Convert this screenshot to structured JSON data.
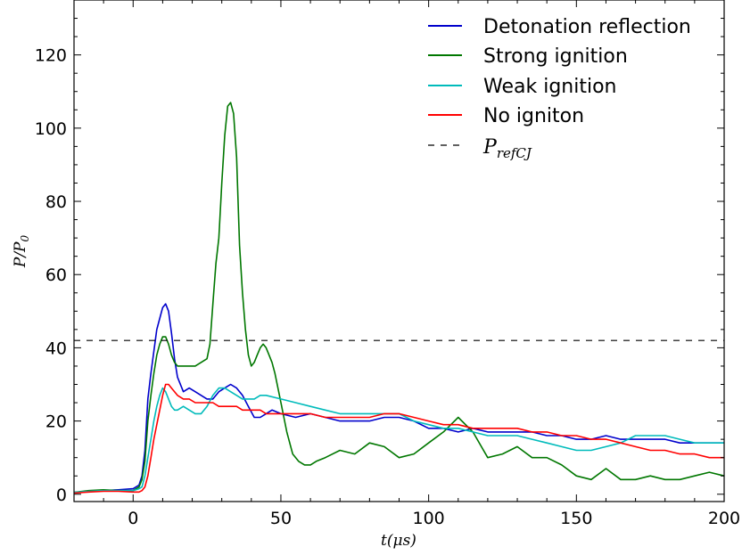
{
  "chart_data": {
    "type": "line",
    "xlabel": "t(μs)",
    "ylabel": "P/P_0",
    "xlim": [
      -20,
      200
    ],
    "ylim": [
      -2,
      135
    ],
    "xticks": [
      0,
      50,
      100,
      150,
      200
    ],
    "xtick_labels": [
      "0",
      "50",
      "100",
      "150",
      "200"
    ],
    "yticks": [
      0,
      20,
      40,
      60,
      80,
      100,
      120
    ],
    "ytick_labels": [
      "0",
      "20",
      "40",
      "60",
      "80",
      "100",
      "120"
    ],
    "grid": false,
    "legend_position": "top-right",
    "series": [
      {
        "name": "Detonation reflection",
        "color": "#0000cc",
        "x": [
          -20,
          -15,
          -10,
          -5,
          0,
          2,
          3,
          4,
          5,
          6,
          7,
          8,
          9,
          10,
          11,
          12,
          13,
          14,
          15,
          17,
          19,
          21,
          23,
          25,
          27,
          29,
          31,
          33,
          35,
          37,
          39,
          41,
          43,
          45,
          47,
          50,
          55,
          60,
          65,
          70,
          75,
          80,
          85,
          90,
          95,
          100,
          105,
          110,
          115,
          120,
          125,
          130,
          135,
          140,
          145,
          150,
          155,
          160,
          165,
          170,
          175,
          180,
          185,
          190,
          195,
          200
        ],
        "y": [
          0.5,
          0.8,
          1,
          1.2,
          1.5,
          2.5,
          5,
          12,
          26,
          33,
          39,
          45,
          48,
          51,
          52,
          50,
          44,
          37,
          32,
          28,
          29,
          28,
          27,
          26,
          26,
          28,
          29,
          30,
          29,
          27,
          24,
          21,
          21,
          22,
          23,
          22,
          21,
          22,
          21,
          20,
          20,
          20,
          21,
          21,
          20,
          18,
          18,
          17,
          18,
          17,
          17,
          17,
          17,
          16,
          16,
          15,
          15,
          16,
          15,
          15,
          15,
          15,
          14,
          14,
          14,
          14
        ]
      },
      {
        "name": "Strong ignition",
        "color": "#007700",
        "x": [
          -20,
          -15,
          -10,
          -5,
          0,
          2,
          3,
          4,
          5,
          6,
          7,
          8,
          9,
          10,
          11,
          12,
          13,
          14,
          15,
          17,
          19,
          21,
          23,
          25,
          26,
          27,
          28,
          29,
          30,
          31,
          32,
          33,
          34,
          35,
          36,
          37,
          38,
          39,
          40,
          41,
          42,
          43,
          44,
          45,
          46,
          47,
          48,
          50,
          52,
          54,
          56,
          58,
          60,
          62,
          65,
          70,
          75,
          80,
          85,
          90,
          95,
          100,
          105,
          110,
          115,
          120,
          125,
          130,
          135,
          140,
          145,
          150,
          155,
          160,
          165,
          170,
          175,
          180,
          185,
          190,
          195,
          200
        ],
        "y": [
          0.5,
          1,
          1.2,
          1,
          1,
          2,
          4,
          9,
          20,
          27,
          33,
          38,
          41,
          43,
          43,
          41,
          38,
          36,
          35,
          35,
          35,
          35,
          36,
          37,
          41,
          52,
          63,
          70,
          85,
          98,
          106,
          107,
          104,
          92,
          68,
          55,
          45,
          38,
          35,
          36,
          38,
          40,
          41,
          40,
          38,
          36,
          33,
          25,
          17,
          11,
          9,
          8,
          8,
          9,
          10,
          12,
          11,
          14,
          13,
          10,
          11,
          14,
          17,
          21,
          17,
          10,
          11,
          13,
          10,
          10,
          8,
          5,
          4,
          7,
          4,
          4,
          5,
          4,
          4,
          5,
          6,
          5
        ]
      },
      {
        "name": "Weak ignition",
        "color": "#00bbbb",
        "x": [
          -20,
          -15,
          -10,
          -5,
          0,
          2,
          3,
          4,
          5,
          6,
          7,
          8,
          9,
          10,
          11,
          12,
          13,
          14,
          15,
          17,
          19,
          21,
          23,
          25,
          27,
          29,
          31,
          33,
          35,
          37,
          39,
          41,
          43,
          45,
          50,
          55,
          60,
          65,
          70,
          75,
          80,
          85,
          90,
          95,
          100,
          105,
          110,
          115,
          120,
          125,
          130,
          135,
          140,
          145,
          150,
          155,
          160,
          165,
          170,
          175,
          180,
          185,
          190,
          195,
          200
        ],
        "y": [
          0.5,
          0.8,
          1,
          1,
          1,
          1.5,
          2,
          5,
          10,
          15,
          20,
          24,
          27,
          29,
          28,
          26,
          24,
          23,
          23,
          24,
          23,
          22,
          22,
          24,
          27,
          29,
          29,
          28,
          27,
          26,
          26,
          26,
          27,
          27,
          26,
          25,
          24,
          23,
          22,
          22,
          22,
          22,
          22,
          20,
          19,
          18,
          18,
          17,
          16,
          16,
          16,
          15,
          14,
          13,
          12,
          12,
          13,
          14,
          16,
          16,
          16,
          15,
          14,
          14,
          14
        ]
      },
      {
        "name": "No igniton",
        "color": "#ff0000",
        "x": [
          -20,
          -15,
          -10,
          -5,
          0,
          2,
          3,
          4,
          5,
          6,
          7,
          8,
          9,
          10,
          11,
          12,
          13,
          14,
          15,
          17,
          19,
          21,
          23,
          25,
          27,
          29,
          31,
          33,
          35,
          37,
          39,
          41,
          43,
          45,
          50,
          55,
          60,
          65,
          70,
          75,
          80,
          85,
          90,
          95,
          100,
          105,
          110,
          115,
          120,
          125,
          130,
          135,
          140,
          145,
          150,
          155,
          160,
          165,
          170,
          175,
          180,
          185,
          190,
          195,
          200
        ],
        "y": [
          0.3,
          0.6,
          0.8,
          0.8,
          0.6,
          0.6,
          1,
          2,
          5,
          10,
          15,
          19,
          23,
          27,
          30,
          30,
          29,
          28,
          27,
          26,
          26,
          25,
          25,
          25,
          25,
          24,
          24,
          24,
          24,
          23,
          23,
          23,
          23,
          22,
          22,
          22,
          22,
          21,
          21,
          21,
          21,
          22,
          22,
          21,
          20,
          19,
          19,
          18,
          18,
          18,
          18,
          17,
          17,
          16,
          16,
          15,
          15,
          14,
          13,
          12,
          12,
          11,
          11,
          10,
          10
        ]
      },
      {
        "name": "P_refCJ",
        "color": "#000000",
        "dashed": true,
        "x": [
          -20,
          200
        ],
        "y": [
          42,
          42
        ]
      }
    ]
  }
}
